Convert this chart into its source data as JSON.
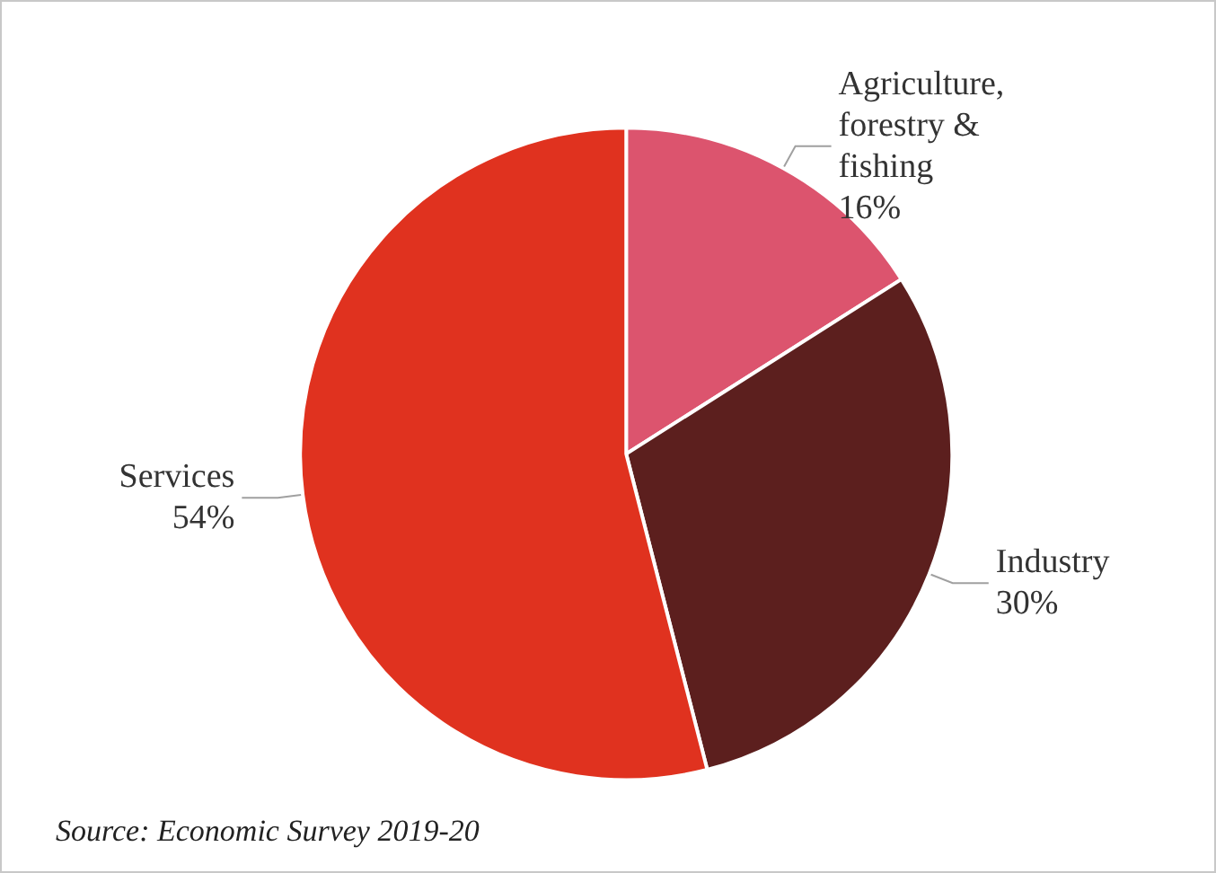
{
  "chart_data": {
    "type": "pie",
    "categories": [
      "Agriculture, forestry & fishing",
      "Industry",
      "Services"
    ],
    "values": [
      16,
      30,
      54
    ],
    "colors": [
      "#dc546e",
      "#5c1f1e",
      "#e0321f"
    ],
    "value_labels": [
      "16%",
      "30%",
      "54%"
    ],
    "legend": false,
    "annotations": [
      "Source: Economic Survey 2019-20"
    ]
  }
}
